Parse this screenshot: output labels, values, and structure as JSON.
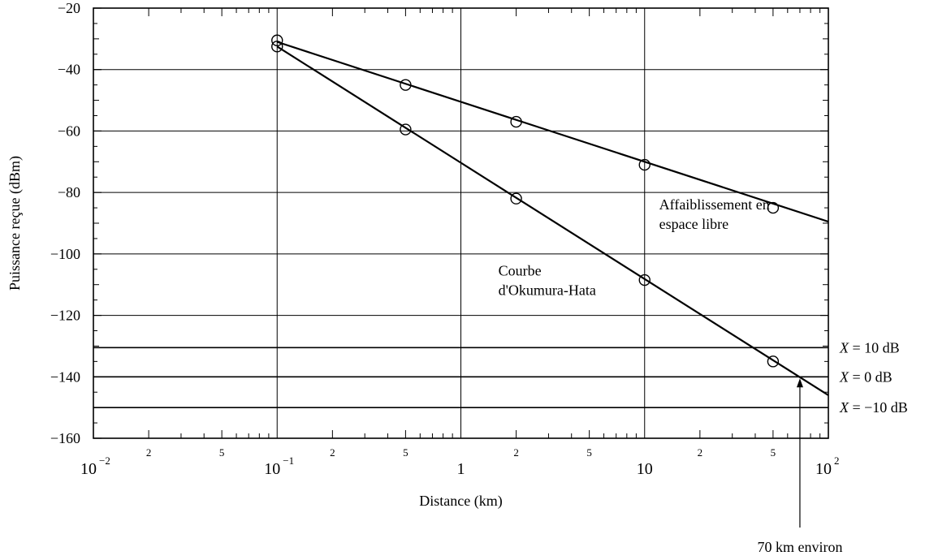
{
  "chart_data": {
    "type": "line",
    "xlabel": "Distance (km)",
    "ylabel": "Puissance reçue (dBm)",
    "x_scale": "log",
    "xlim": [
      0.01,
      100
    ],
    "ylim": [
      -160,
      -20
    ],
    "grid": true,
    "x_major_ticks": [
      {
        "value": 0.01,
        "base": "10",
        "exp": "−2"
      },
      {
        "value": 0.1,
        "base": "10",
        "exp": "−1"
      },
      {
        "value": 1,
        "base": "1",
        "exp": ""
      },
      {
        "value": 10,
        "base": "10",
        "exp": ""
      },
      {
        "value": 100,
        "base": "10",
        "exp": "2"
      }
    ],
    "x_minor_labels": [
      {
        "value": 0.02,
        "label": "2"
      },
      {
        "value": 0.05,
        "label": "5"
      },
      {
        "value": 0.2,
        "label": "2"
      },
      {
        "value": 0.5,
        "label": "5"
      },
      {
        "value": 2,
        "label": "2"
      },
      {
        "value": 5,
        "label": "5"
      },
      {
        "value": 20,
        "label": "2"
      },
      {
        "value": 50,
        "label": "5"
      }
    ],
    "y_ticks": [
      {
        "value": -20,
        "label": "−20"
      },
      {
        "value": -40,
        "label": "−40"
      },
      {
        "value": -60,
        "label": "−60"
      },
      {
        "value": -80,
        "label": "−80"
      },
      {
        "value": -100,
        "label": "−100"
      },
      {
        "value": -120,
        "label": "−120"
      },
      {
        "value": -140,
        "label": "−140"
      },
      {
        "value": -160,
        "label": "−160"
      }
    ],
    "series": [
      {
        "name": "Affaiblissement en espace libre",
        "line_x": [
          0.1,
          100
        ],
        "line_y": [
          -31,
          -89.5
        ],
        "marker_x": [
          0.1,
          0.5,
          2,
          10,
          50
        ],
        "marker_y": [
          -30.5,
          -45,
          -57,
          -71,
          -85
        ]
      },
      {
        "name": "Courbe d'Okumura-Hata",
        "line_x": [
          0.1,
          100
        ],
        "line_y": [
          -32.5,
          -146
        ],
        "marker_x": [
          0.1,
          0.5,
          2,
          10,
          50
        ],
        "marker_y": [
          -32.5,
          -59.5,
          -82,
          -108.5,
          -135
        ]
      }
    ],
    "series_labels": [
      {
        "lines": [
          "Affaiblissement en",
          "espace libre"
        ],
        "x": 12,
        "y": -85.5
      },
      {
        "lines": [
          "Courbe",
          "d'Okumura-Hata"
        ],
        "x": 1.6,
        "y": -107
      }
    ],
    "threshold_lines": [
      {
        "y": -130.5,
        "label": "X = 10 dB",
        "var": "X",
        "rest": " = 10 dB"
      },
      {
        "y": -140,
        "label": "X = 0 dB",
        "var": "X",
        "rest": " = 0 dB"
      },
      {
        "y": -150,
        "label": "X = −10 dB",
        "var": "X",
        "rest": " = −10 dB"
      }
    ],
    "annotations": [
      {
        "text": "70 km environ",
        "x": 70,
        "y": -140
      }
    ]
  }
}
